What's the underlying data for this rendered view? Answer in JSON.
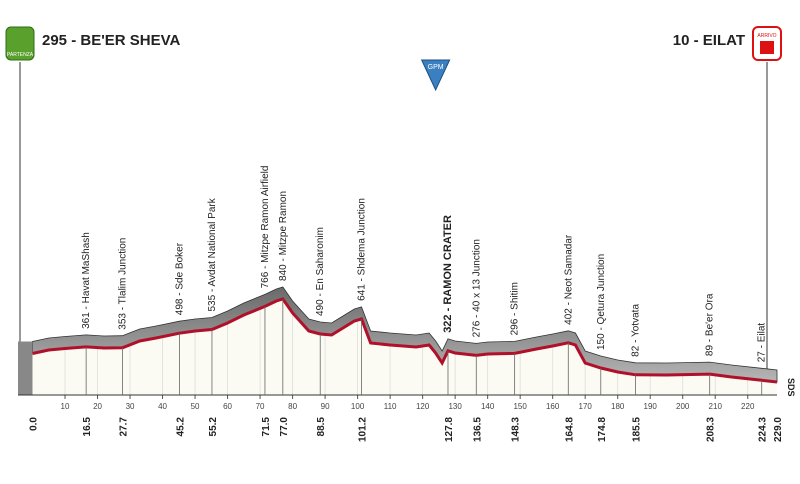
{
  "chart_data": {
    "type": "profile",
    "start": {
      "label": "295 - BE'ER SHEVA",
      "badge": "PARTENZA"
    },
    "finish": {
      "label": "10 - EILAT",
      "badge": "ARRIVO"
    },
    "gpm": {
      "label": "GPM",
      "km": 124
    },
    "sponsor": "SDS",
    "xlim": [
      0,
      229
    ],
    "ylim": [
      -120,
      1000
    ],
    "xticks": [
      10,
      20,
      30,
      40,
      50,
      60,
      70,
      80,
      90,
      100,
      110,
      120,
      130,
      140,
      150,
      160,
      170,
      180,
      190,
      200,
      210,
      220
    ],
    "endpoints": [
      {
        "value": 0,
        "label": "0.0"
      },
      {
        "value": 229,
        "label": "229.0"
      }
    ],
    "waypoints": [
      {
        "km": 16.5,
        "label": "361 - Havat MaShash"
      },
      {
        "km": 27.7,
        "label": "353 - Tlalim Junction"
      },
      {
        "km": 45.2,
        "label": "498 - Sde Boker"
      },
      {
        "km": 55.2,
        "label": "535 - Avdat National Park"
      },
      {
        "km": 71.5,
        "label": "766 - Mitzpe Ramon Airfield"
      },
      {
        "km": {
          "value": 77,
          "label": "77.0"
        },
        "label": "840 - Mitzpe Ramon"
      },
      {
        "km": 88.5,
        "label": "490 - En Saharonim"
      },
      {
        "km": 101.2,
        "label": "641 - Shdema Junction"
      },
      {
        "km": 127.8,
        "label": "322 - RAMON CRATER",
        "emphasis": true
      },
      {
        "km": 136.5,
        "label": "276 - 40 x 13 Junction"
      },
      {
        "km": 148.3,
        "label": "296 - Shitim"
      },
      {
        "km": 164.8,
        "label": "402 - Neot Samadar"
      },
      {
        "km": 174.8,
        "label": "150 - Qetura Junction"
      },
      {
        "km": 185.5,
        "label": "82 - Yotvata"
      },
      {
        "km": 208.3,
        "label": "89 - Be'er Ora"
      },
      {
        "km": 224.3,
        "label": "27 - Eilat"
      }
    ],
    "profile": {
      "km": [
        0,
        5,
        10,
        16.5,
        22,
        27.7,
        33,
        38,
        45.2,
        50,
        55.2,
        60,
        65,
        71.5,
        75,
        77,
        80,
        85,
        88.5,
        92,
        96,
        99,
        101.2,
        104,
        110,
        118,
        122,
        124,
        126,
        127.8,
        130,
        136.5,
        140,
        148.3,
        155,
        160,
        164.8,
        167,
        170,
        174.8,
        180,
        185.5,
        195,
        208.3,
        215,
        224.3,
        229
      ],
      "elevation": [
        295,
        330,
        345,
        361,
        350,
        353,
        420,
        450,
        498,
        520,
        535,
        600,
        680,
        766,
        820,
        840,
        700,
        520,
        490,
        480,
        560,
        620,
        641,
        400,
        380,
        360,
        380,
        300,
        200,
        322,
        300,
        276,
        290,
        296,
        340,
        370,
        402,
        380,
        200,
        150,
        110,
        82,
        80,
        89,
        60,
        27,
        10
      ]
    }
  }
}
